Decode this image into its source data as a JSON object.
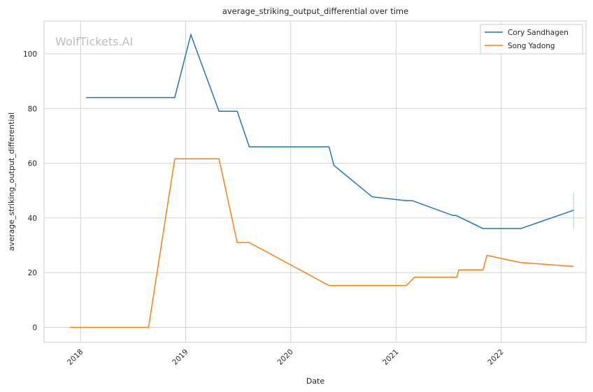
{
  "chart_data": {
    "type": "line",
    "title": "average_striking_output_differential over time",
    "xlabel": "Date",
    "ylabel": "average_striking_output_differential",
    "watermark": "WolfTickets.AI",
    "x_ticks": [
      "2018",
      "2019",
      "2020",
      "2021",
      "2022"
    ],
    "y_ticks": [
      "0",
      "20",
      "40",
      "60",
      "80",
      "100"
    ],
    "ylim": [
      -5.5,
      112
    ],
    "xlim": [
      "2017-08-27",
      "2022-10-23"
    ],
    "grid": true,
    "legend_position": "top-right",
    "series": [
      {
        "name": "Cory Sandhagen",
        "color": "#1f77b4",
        "points": [
          [
            "2018-01-20",
            84
          ],
          [
            "2018-11-24",
            84
          ],
          [
            "2019-01-19",
            107
          ],
          [
            "2019-04-27",
            79
          ],
          [
            "2019-06-29",
            79
          ],
          [
            "2019-08-10",
            66
          ],
          [
            "2020-05-13",
            66
          ],
          [
            "2020-05-30",
            59.2
          ],
          [
            "2020-10-10",
            47.7
          ],
          [
            "2021-02-07",
            46.3
          ],
          [
            "2021-02-27",
            46.3
          ],
          [
            "2021-07-17",
            40.9
          ],
          [
            "2021-07-28",
            40.9
          ],
          [
            "2021-10-30",
            36.1
          ],
          [
            "2022-03-10",
            36.1
          ],
          [
            "2022-09-10",
            42.8
          ]
        ]
      },
      {
        "name": "Song Yadong",
        "color": "#ff7f0e",
        "points": [
          [
            "2017-11-25",
            0
          ],
          [
            "2018-08-25",
            0
          ],
          [
            "2018-11-24",
            61.6
          ],
          [
            "2019-04-27",
            61.6
          ],
          [
            "2019-06-29",
            31
          ],
          [
            "2019-08-10",
            31
          ],
          [
            "2020-05-13",
            15.3
          ],
          [
            "2021-02-06",
            15.3
          ],
          [
            "2021-03-06",
            18.3
          ],
          [
            "2021-07-31",
            18.3
          ],
          [
            "2021-08-07",
            21
          ],
          [
            "2021-10-30",
            21
          ],
          [
            "2021-11-13",
            26.3
          ],
          [
            "2022-03-10",
            23.7
          ],
          [
            "2022-09-10",
            22.3
          ]
        ]
      }
    ],
    "error_bar": {
      "series": "Cory Sandhagen",
      "x": "2022-09-10",
      "low": 36,
      "high": 49.3
    }
  }
}
